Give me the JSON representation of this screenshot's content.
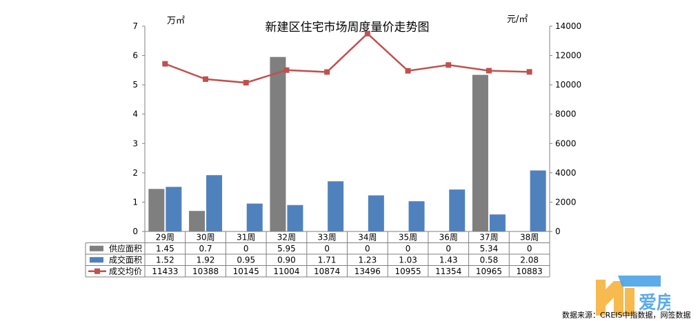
{
  "chart_data": {
    "type": "bar",
    "title": "新建区住宅市场周度量价走势图",
    "y_left_unit": "万㎡",
    "y_right_unit": "元/㎡",
    "y_left_lim": [
      0,
      7
    ],
    "y_left_ticks": [
      "0",
      "1",
      "2",
      "3",
      "4",
      "5",
      "6",
      "7"
    ],
    "y_right_lim": [
      0,
      14000
    ],
    "y_right_ticks": [
      "0",
      "2000",
      "4000",
      "6000",
      "8000",
      "10000",
      "12000",
      "14000"
    ],
    "categories": [
      "29周",
      "30周",
      "31周",
      "32周",
      "33周",
      "34周",
      "35周",
      "36周",
      "37周",
      "38周"
    ],
    "series": [
      {
        "name": "供应面积",
        "type": "bar",
        "axis": "left",
        "color": "#7f7f7f",
        "values": [
          1.45,
          0.7,
          0,
          5.95,
          0,
          0,
          0,
          0,
          5.34,
          0
        ],
        "labels": [
          "1.45",
          "0.7",
          "0",
          "5.95",
          "0",
          "0",
          "0",
          "0",
          "5.34",
          "0"
        ]
      },
      {
        "name": "成交面积",
        "type": "bar",
        "axis": "left",
        "color": "#4f81bd",
        "values": [
          1.52,
          1.92,
          0.95,
          0.9,
          1.71,
          1.23,
          1.03,
          1.43,
          0.58,
          2.08
        ],
        "labels": [
          "1.52",
          "1.92",
          "0.95",
          "0.90",
          "1.71",
          "1.23",
          "1.03",
          "1.43",
          "0.58",
          "2.08"
        ]
      },
      {
        "name": "成交均价",
        "type": "line",
        "axis": "right",
        "color": "#c0504d",
        "values": [
          11433,
          10388,
          10145,
          11004,
          10874,
          13496,
          10955,
          11354,
          10965,
          10883
        ],
        "labels": [
          "11433",
          "10388",
          "10145",
          "11004",
          "10874",
          "13496",
          "10955",
          "11354",
          "10965",
          "10883"
        ]
      }
    ],
    "legend_position": "data-table-left",
    "grid": false
  },
  "watermark": {
    "text": "爱房"
  },
  "source": "数据来源：CREIS中指数据，网签数据"
}
